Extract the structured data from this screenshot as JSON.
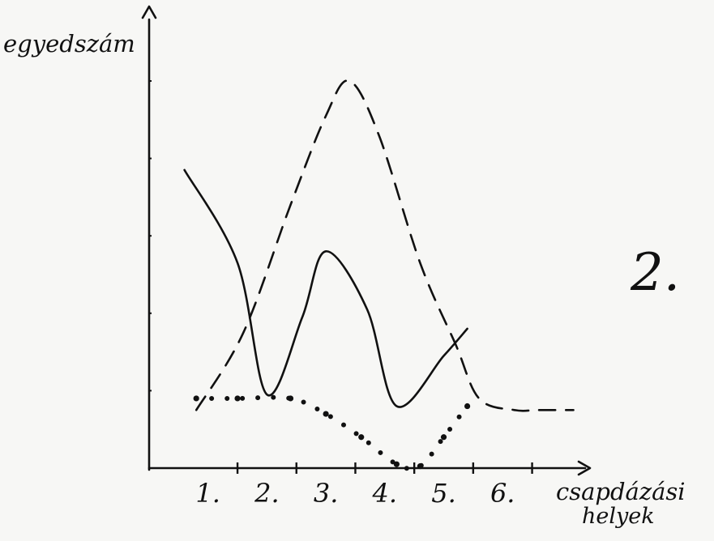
{
  "chart_data": {
    "type": "line",
    "title": "",
    "ylabel": "egyedszám",
    "xlabel": [
      "csapdázási",
      "helyek"
    ],
    "categories": [
      "1.",
      "2.",
      "3.",
      "4.",
      "5.",
      "6."
    ],
    "ylim": [
      0,
      10
    ],
    "grid": false,
    "legend": "none",
    "series": [
      {
        "style": "solid",
        "color": "#111111",
        "x": [
          0.6,
          1.5,
          2.0,
          2.6,
          3.0,
          3.7,
          4.2,
          5.0,
          5.4
        ],
        "y": [
          7.7,
          5.3,
          1.9,
          3.9,
          5.6,
          4.1,
          1.6,
          2.9,
          3.6
        ]
      },
      {
        "style": "dashed",
        "color": "#111111",
        "x": [
          0.8,
          1.6,
          2.4,
          3.0,
          3.4,
          3.9,
          4.6,
          5.2,
          5.6,
          6.2,
          6.6,
          7.2
        ],
        "y": [
          1.5,
          3.5,
          6.8,
          9.1,
          10.0,
          8.6,
          5.3,
          3.2,
          1.8,
          1.5,
          1.5,
          1.5
        ]
      },
      {
        "style": "dotted",
        "color": "#111111",
        "x": [
          0.8,
          1.5,
          2.4,
          3.0,
          3.6,
          4.2,
          4.6,
          5.0,
          5.4
        ],
        "y": [
          1.8,
          1.8,
          1.8,
          1.4,
          0.8,
          0.1,
          0.05,
          0.8,
          1.6
        ]
      }
    ]
  },
  "annotation": "2.",
  "background": {
    "paper": "#f7f7f5",
    "ink": "#111111",
    "bleed": "#c7c7c4"
  }
}
